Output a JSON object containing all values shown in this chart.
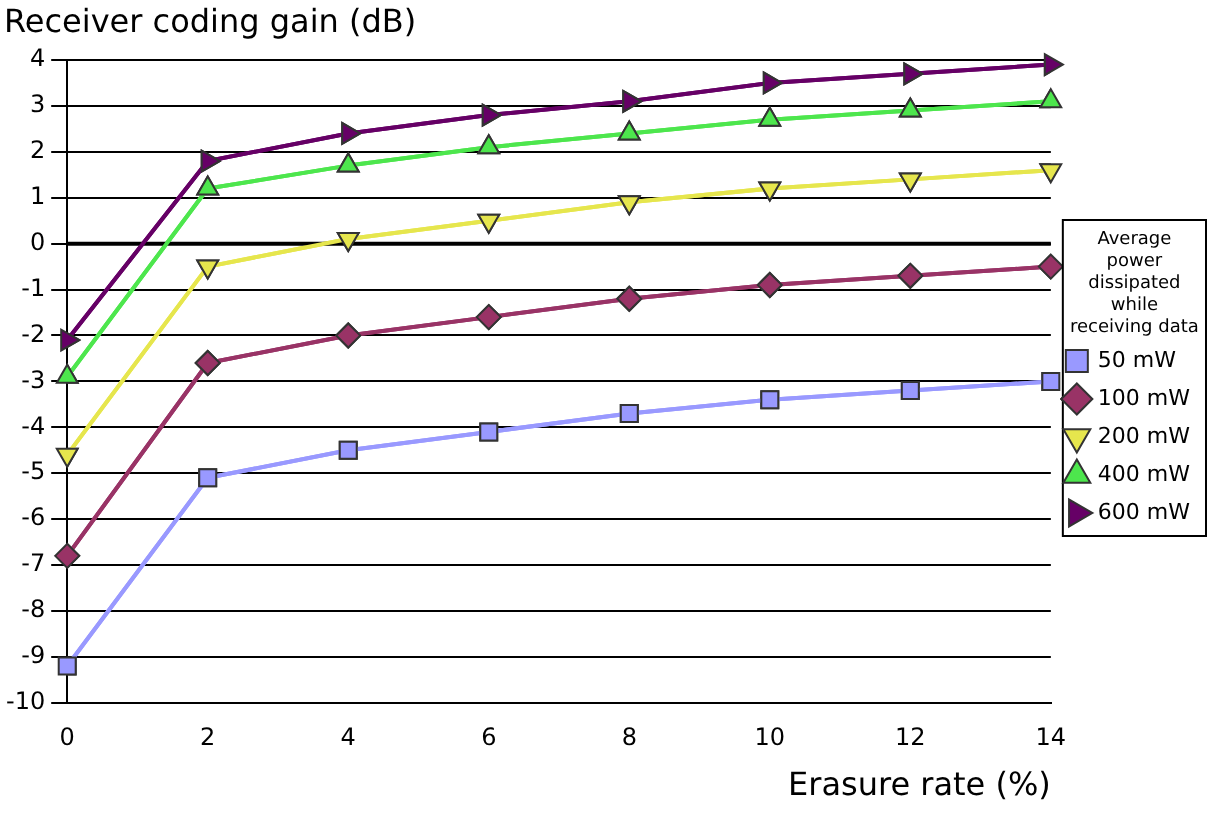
{
  "chart_data": {
    "type": "line",
    "ylabel": "Receiver coding gain (dB)",
    "xlabel": "Erasure rate (%)",
    "legend_title": "Average power dissipated while receiving data",
    "legend": "right",
    "grid": "y",
    "line_style": "solid",
    "x": [
      0,
      2,
      4,
      6,
      8,
      10,
      12,
      14
    ],
    "xlim": [
      0,
      14
    ],
    "xticks": [
      0,
      2,
      4,
      6,
      8,
      10,
      12,
      14
    ],
    "ylim": [
      -10,
      4
    ],
    "yticks": [
      -10,
      -9,
      -8,
      -7,
      -6,
      -5,
      -4,
      -3,
      -2,
      -1,
      0,
      1,
      2,
      3,
      4
    ],
    "ref_lines": [
      {
        "axis": "y",
        "value": 0,
        "color": "#000000"
      }
    ],
    "series": [
      {
        "name": "50 mW",
        "color": "#9999ff",
        "marker": "square",
        "values": [
          -9.2,
          -5.1,
          -4.5,
          -4.1,
          -3.7,
          -3.4,
          -3.2,
          -3.0
        ]
      },
      {
        "name": "100 mW",
        "color": "#993366",
        "marker": "diamond",
        "values": [
          -6.8,
          -2.6,
          -2.0,
          -1.6,
          -1.2,
          -0.9,
          -0.7,
          -0.5
        ]
      },
      {
        "name": "200 mW",
        "color": "#e6e64d",
        "marker": "triangle-down",
        "values": [
          -4.6,
          -0.5,
          0.1,
          0.5,
          0.9,
          1.2,
          1.4,
          1.6
        ]
      },
      {
        "name": "400 mW",
        "color": "#4de64d",
        "marker": "triangle",
        "values": [
          -2.9,
          1.2,
          1.7,
          2.1,
          2.4,
          2.7,
          2.9,
          3.1
        ]
      },
      {
        "name": "600 mW",
        "color": "#660066",
        "marker": "triangle-right",
        "values": [
          -2.1,
          1.8,
          2.4,
          2.8,
          3.1,
          3.5,
          3.7,
          3.9
        ]
      }
    ]
  }
}
